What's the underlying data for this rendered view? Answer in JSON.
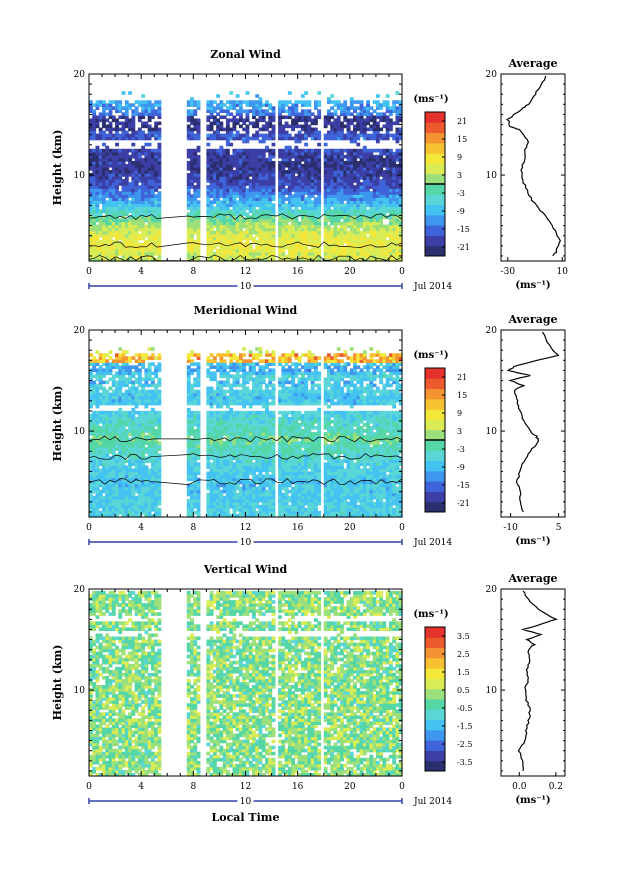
{
  "chart_data": [
    {
      "type": "heatmap",
      "title": "Zonal Wind",
      "ylabel": "Height (km)",
      "xlabel": "",
      "x_ticks": [
        "0",
        "4",
        "8",
        "12",
        "16",
        "20",
        "0"
      ],
      "y_ticks": [
        "20",
        "10"
      ],
      "xlim": [
        0,
        24
      ],
      "ylim": [
        1.5,
        20
      ],
      "date_axis": {
        "day": "10",
        "month_label": "Jul 2014"
      },
      "colorbar": {
        "unit": "(ms⁻¹)",
        "range": [
          -24,
          24
        ],
        "ticks": [
          "21",
          "15",
          "9",
          "3",
          "-3",
          "-9",
          "-15",
          "-21"
        ],
        "contour_at": 0
      },
      "data_gaps_hours": [
        [
          5.5,
          7.4
        ],
        [
          8.6,
          8.9
        ],
        [
          14.2,
          14.4
        ],
        [
          17.7,
          17.9
        ]
      ],
      "profile": [
        [
          -2,
          19.8
        ],
        [
          -5,
          19
        ],
        [
          -10,
          18
        ],
        [
          -15,
          17
        ],
        [
          -20,
          16.5
        ],
        [
          -30,
          15.5
        ],
        [
          -28,
          14.8
        ],
        [
          -22,
          14.5
        ],
        [
          -15,
          13.5
        ],
        [
          -17,
          12.5
        ],
        [
          -18,
          11.5
        ],
        [
          -20,
          10.5
        ],
        [
          -19,
          9.5
        ],
        [
          -16,
          8.5
        ],
        [
          -12,
          7.5
        ],
        [
          -6,
          6.5
        ],
        [
          0,
          5.5
        ],
        [
          5,
          4.5
        ],
        [
          8,
          3.5
        ],
        [
          6,
          2.5
        ],
        [
          3,
          2
        ]
      ],
      "profile_chart": {
        "title": "Average",
        "unit": "(ms⁻¹)",
        "x_ticks": [
          "-30",
          "10"
        ],
        "y_ticks": [
          "20",
          "10"
        ],
        "xlim": [
          -35,
          12
        ]
      }
    },
    {
      "type": "heatmap",
      "title": "Meridional Wind",
      "ylabel": "Height (km)",
      "xlabel": "",
      "x_ticks": [
        "0",
        "4",
        "8",
        "12",
        "16",
        "20",
        "0"
      ],
      "y_ticks": [
        "20",
        "10"
      ],
      "xlim": [
        0,
        24
      ],
      "ylim": [
        1.5,
        20
      ],
      "date_axis": {
        "day": "10",
        "month_label": "Jul 2014"
      },
      "colorbar": {
        "unit": "(ms⁻¹)",
        "range": [
          -24,
          24
        ],
        "ticks": [
          "21",
          "15",
          "9",
          "3",
          "-3",
          "-9",
          "-15",
          "-21"
        ],
        "contour_at": 0
      },
      "data_gaps_hours": [
        [
          5.5,
          7.4
        ],
        [
          8.6,
          8.9
        ],
        [
          14.2,
          14.4
        ],
        [
          17.7,
          17.9
        ]
      ],
      "profile": [
        [
          0,
          19.8
        ],
        [
          2,
          18.5
        ],
        [
          5,
          17.5
        ],
        [
          -8,
          16.5
        ],
        [
          -11,
          16
        ],
        [
          -4,
          15.5
        ],
        [
          -10,
          15
        ],
        [
          -6,
          14.5
        ],
        [
          -9,
          14
        ],
        [
          -8,
          13
        ],
        [
          -7,
          12
        ],
        [
          -6,
          11
        ],
        [
          -4,
          10
        ],
        [
          -2,
          9.5
        ],
        [
          -1,
          9
        ],
        [
          -4,
          8
        ],
        [
          -6,
          7
        ],
        [
          -7,
          6
        ],
        [
          -8,
          5
        ],
        [
          -7,
          4
        ],
        [
          -7,
          3
        ],
        [
          -6,
          2
        ]
      ],
      "profile_chart": {
        "title": "Average",
        "unit": "(ms⁻¹)",
        "x_ticks": [
          "-10",
          "5"
        ],
        "y_ticks": [
          "20",
          "10"
        ],
        "xlim": [
          -13,
          7
        ]
      }
    },
    {
      "type": "heatmap",
      "title": "Vertical Wind",
      "ylabel": "Height (km)",
      "xlabel": "Local Time",
      "x_ticks": [
        "0",
        "4",
        "8",
        "12",
        "16",
        "20",
        "0"
      ],
      "y_ticks": [
        "20",
        "10"
      ],
      "xlim": [
        0,
        24
      ],
      "ylim": [
        1.5,
        20
      ],
      "date_axis": {
        "day": "10",
        "month_label": "Jul 2014"
      },
      "colorbar": {
        "unit": "(ms⁻¹)",
        "range": [
          -4,
          4
        ],
        "ticks": [
          "3.5",
          "2.5",
          "1.5",
          "0.5",
          "-0.5",
          "-1.5",
          "-2.5",
          "-3.5"
        ]
      },
      "data_gaps_hours": [
        [
          5.5,
          7.4
        ],
        [
          8.6,
          8.9
        ],
        [
          14.2,
          14.4
        ],
        [
          17.7,
          17.9
        ]
      ],
      "profile": [
        [
          0.02,
          19.8
        ],
        [
          0.05,
          19
        ],
        [
          0.1,
          18
        ],
        [
          0.2,
          17
        ],
        [
          0.12,
          16.5
        ],
        [
          0.02,
          16
        ],
        [
          0.12,
          15.5
        ],
        [
          0.04,
          15
        ],
        [
          0.08,
          14.5
        ],
        [
          0.05,
          14
        ],
        [
          0.06,
          13
        ],
        [
          0.04,
          12
        ],
        [
          0.05,
          11
        ],
        [
          0.03,
          10
        ],
        [
          0.04,
          9
        ],
        [
          0.06,
          8
        ],
        [
          0.05,
          7
        ],
        [
          0.04,
          6
        ],
        [
          0.03,
          5
        ],
        [
          0.0,
          4
        ],
        [
          0.02,
          3
        ],
        [
          0.02,
          2
        ]
      ],
      "profile_chart": {
        "title": "Average",
        "unit": "(ms⁻¹)",
        "x_ticks": [
          "0.0",
          "0.2"
        ],
        "y_ticks": [
          "20",
          "10"
        ],
        "xlim": [
          -0.1,
          0.25
        ]
      }
    }
  ]
}
